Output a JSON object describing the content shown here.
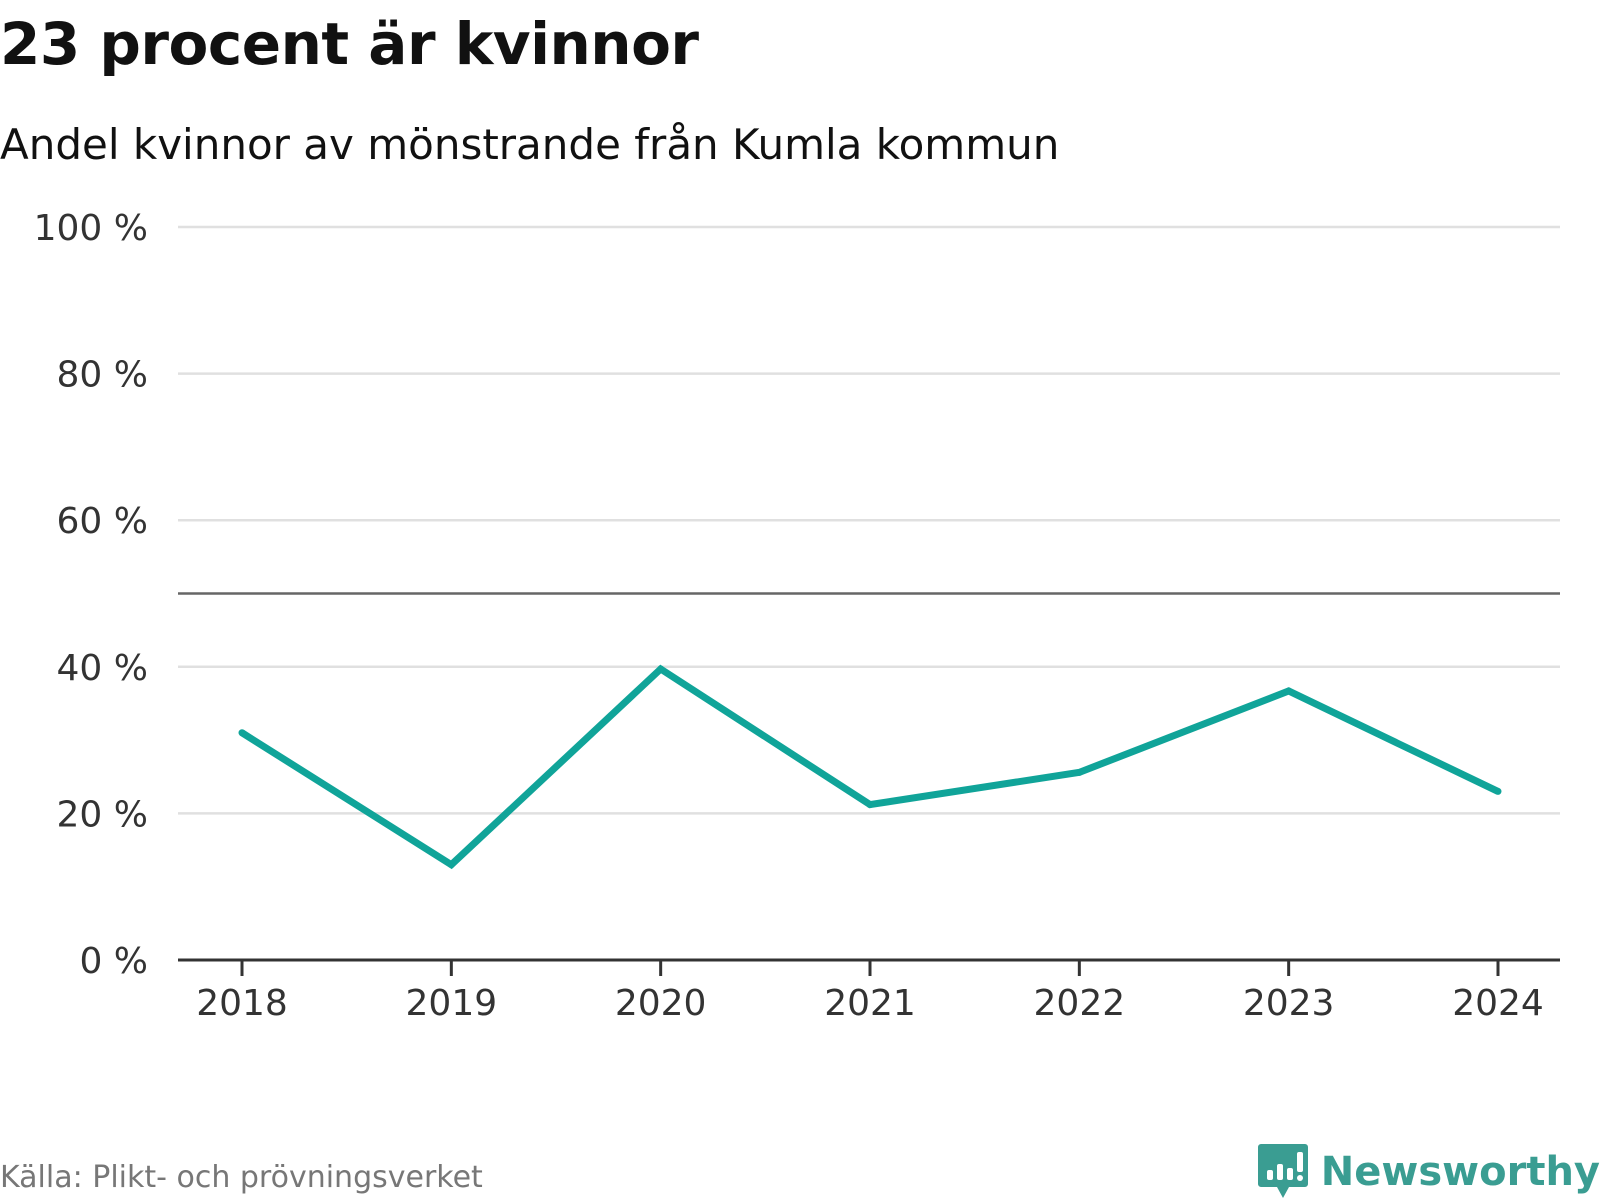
{
  "chart_data": {
    "type": "line",
    "title": "23 procent är kvinnor",
    "subtitle": "Andel kvinnor av mönstrande från Kumla kommun",
    "categories": [
      "2018",
      "2019",
      "2020",
      "2021",
      "2022",
      "2023",
      "2024"
    ],
    "series": [
      {
        "name": "Andel kvinnor",
        "values": [
          31.0,
          13.0,
          39.7,
          21.2,
          25.6,
          36.7,
          23.0
        ],
        "color": "#10a499"
      }
    ],
    "ylim": [
      0,
      100
    ],
    "yticks": [
      0,
      20,
      40,
      60,
      80,
      100
    ],
    "ytick_labels": [
      "0 %",
      "20 %",
      "40 %",
      "60 %",
      "80 %",
      "100 %"
    ],
    "reference_line": 50,
    "grid": true,
    "xlabel": "",
    "ylabel": ""
  },
  "footer": {
    "source": "Källa: Plikt- och prövningsverket",
    "brand": "Newsworthy"
  },
  "colors": {
    "accent": "#10a499",
    "grid": "#e0e0e0",
    "reference": "#666666",
    "brand": "#3a9d92"
  }
}
